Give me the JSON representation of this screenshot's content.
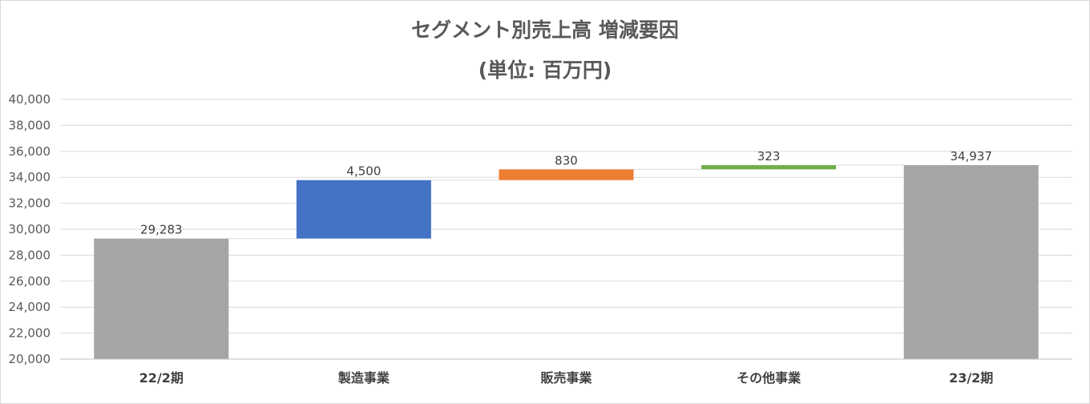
{
  "chart_data": {
    "type": "bar",
    "subtype": "waterfall",
    "title": "セグメント別売上高 増減要因",
    "subtitle": "(単位: 百万円)",
    "categories": [
      "22/2期",
      "製造事業",
      "販売事業",
      "その他事業",
      "23/2期"
    ],
    "values": [
      29283,
      4500,
      830,
      323,
      34937
    ],
    "value_labels": [
      "29,283",
      "4,500",
      "830",
      "323",
      "34,937"
    ],
    "measure": [
      "total",
      "increase",
      "increase",
      "increase",
      "total"
    ],
    "colors": [
      "#a5a5a5",
      "#4472c4",
      "#ed7d31",
      "#70ad47",
      "#a5a5a5"
    ],
    "ylim": [
      20000,
      40000
    ],
    "yticks": [
      20000,
      22000,
      24000,
      26000,
      28000,
      30000,
      32000,
      34000,
      36000,
      38000,
      40000
    ],
    "ytick_labels": [
      "20,000",
      "22,000",
      "24,000",
      "26,000",
      "28,000",
      "30,000",
      "32,000",
      "34,000",
      "36,000",
      "38,000",
      "40,000"
    ],
    "grid": true,
    "connectors": true,
    "legend": "none"
  }
}
